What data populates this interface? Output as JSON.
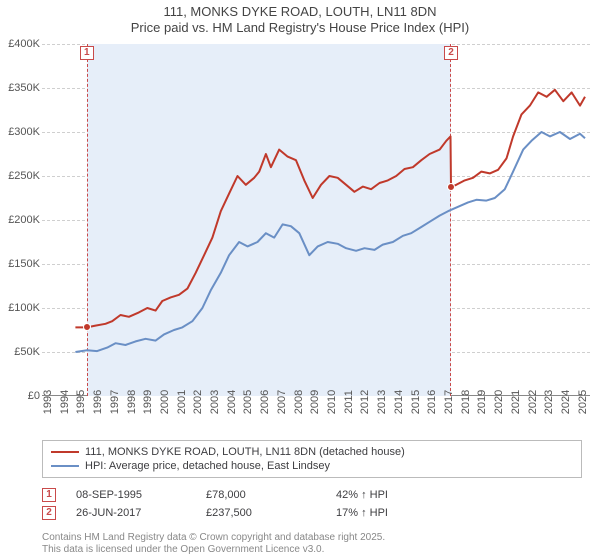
{
  "title_line1": "111, MONKS DYKE ROAD, LOUTH, LN11 8DN",
  "title_line2": "Price paid vs. HM Land Registry's House Price Index (HPI)",
  "chart": {
    "type": "line",
    "background_color": "#ffffff",
    "grid_color": "#cfcfcf",
    "x": {
      "min": 1993,
      "max": 2025.8,
      "tick_step": 1,
      "ticks": [
        1993,
        1994,
        1995,
        1996,
        1997,
        1998,
        1999,
        2000,
        2001,
        2002,
        2003,
        2004,
        2005,
        2006,
        2007,
        2008,
        2009,
        2010,
        2011,
        2012,
        2013,
        2014,
        2015,
        2016,
        2017,
        2018,
        2019,
        2020,
        2021,
        2022,
        2023,
        2024,
        2025
      ],
      "label_fontsize": 11,
      "rotation": -90
    },
    "y": {
      "min": 0,
      "max": 400000,
      "tick_step": 50000,
      "ticks": [
        {
          "v": 0,
          "label": "£0"
        },
        {
          "v": 50000,
          "label": "£50K"
        },
        {
          "v": 100000,
          "label": "£100K"
        },
        {
          "v": 150000,
          "label": "£150K"
        },
        {
          "v": 200000,
          "label": "£200K"
        },
        {
          "v": 250000,
          "label": "£250K"
        },
        {
          "v": 300000,
          "label": "£300K"
        },
        {
          "v": 350000,
          "label": "£350K"
        },
        {
          "v": 400000,
          "label": "£400K"
        }
      ],
      "label_fontsize": 11
    },
    "shade_color": "#e6eef9",
    "series": [
      {
        "key": "property",
        "color": "#c0392b",
        "line_width": 2,
        "data": [
          [
            1995.0,
            78000
          ],
          [
            1995.68,
            78000
          ],
          [
            1996.2,
            80000
          ],
          [
            1996.8,
            82000
          ],
          [
            1997.2,
            85000
          ],
          [
            1997.7,
            92000
          ],
          [
            1998.2,
            90000
          ],
          [
            1998.8,
            95000
          ],
          [
            1999.3,
            100000
          ],
          [
            1999.8,
            97000
          ],
          [
            2000.2,
            108000
          ],
          [
            2000.7,
            112000
          ],
          [
            2001.2,
            115000
          ],
          [
            2001.7,
            122000
          ],
          [
            2002.2,
            140000
          ],
          [
            2002.7,
            160000
          ],
          [
            2003.2,
            180000
          ],
          [
            2003.7,
            210000
          ],
          [
            2004.2,
            230000
          ],
          [
            2004.7,
            250000
          ],
          [
            2005.2,
            240000
          ],
          [
            2005.7,
            248000
          ],
          [
            2006.0,
            255000
          ],
          [
            2006.4,
            275000
          ],
          [
            2006.7,
            260000
          ],
          [
            2007.2,
            280000
          ],
          [
            2007.7,
            272000
          ],
          [
            2008.2,
            268000
          ],
          [
            2008.7,
            245000
          ],
          [
            2009.2,
            225000
          ],
          [
            2009.7,
            240000
          ],
          [
            2010.2,
            250000
          ],
          [
            2010.7,
            248000
          ],
          [
            2011.2,
            240000
          ],
          [
            2011.7,
            232000
          ],
          [
            2012.2,
            238000
          ],
          [
            2012.7,
            235000
          ],
          [
            2013.2,
            242000
          ],
          [
            2013.7,
            245000
          ],
          [
            2014.2,
            250000
          ],
          [
            2014.7,
            258000
          ],
          [
            2015.2,
            260000
          ],
          [
            2015.7,
            268000
          ],
          [
            2016.2,
            275000
          ],
          [
            2016.8,
            280000
          ],
          [
            2017.2,
            290000
          ],
          [
            2017.45,
            295000
          ],
          [
            2017.48,
            237500
          ],
          [
            2017.8,
            240000
          ],
          [
            2018.3,
            245000
          ],
          [
            2018.8,
            248000
          ],
          [
            2019.3,
            255000
          ],
          [
            2019.8,
            253000
          ],
          [
            2020.3,
            257000
          ],
          [
            2020.8,
            270000
          ],
          [
            2021.2,
            295000
          ],
          [
            2021.7,
            320000
          ],
          [
            2022.2,
            330000
          ],
          [
            2022.7,
            345000
          ],
          [
            2023.2,
            340000
          ],
          [
            2023.7,
            348000
          ],
          [
            2024.2,
            335000
          ],
          [
            2024.7,
            345000
          ],
          [
            2025.2,
            330000
          ],
          [
            2025.5,
            340000
          ]
        ]
      },
      {
        "key": "hpi",
        "color": "#6a8fc5",
        "line_width": 2,
        "data": [
          [
            1995.0,
            50000
          ],
          [
            1995.7,
            52000
          ],
          [
            1996.3,
            51000
          ],
          [
            1996.9,
            55000
          ],
          [
            1997.4,
            60000
          ],
          [
            1998.0,
            58000
          ],
          [
            1998.6,
            62000
          ],
          [
            1999.2,
            65000
          ],
          [
            1999.8,
            63000
          ],
          [
            2000.3,
            70000
          ],
          [
            2000.9,
            75000
          ],
          [
            2001.4,
            78000
          ],
          [
            2002.0,
            85000
          ],
          [
            2002.6,
            100000
          ],
          [
            2003.1,
            120000
          ],
          [
            2003.7,
            140000
          ],
          [
            2004.2,
            160000
          ],
          [
            2004.8,
            175000
          ],
          [
            2005.3,
            170000
          ],
          [
            2005.9,
            175000
          ],
          [
            2006.4,
            185000
          ],
          [
            2006.9,
            180000
          ],
          [
            2007.4,
            195000
          ],
          [
            2007.9,
            193000
          ],
          [
            2008.4,
            185000
          ],
          [
            2009.0,
            160000
          ],
          [
            2009.5,
            170000
          ],
          [
            2010.1,
            175000
          ],
          [
            2010.7,
            173000
          ],
          [
            2011.2,
            168000
          ],
          [
            2011.8,
            165000
          ],
          [
            2012.3,
            168000
          ],
          [
            2012.9,
            166000
          ],
          [
            2013.4,
            172000
          ],
          [
            2014.0,
            175000
          ],
          [
            2014.6,
            182000
          ],
          [
            2015.1,
            185000
          ],
          [
            2015.7,
            192000
          ],
          [
            2016.2,
            198000
          ],
          [
            2016.8,
            205000
          ],
          [
            2017.3,
            210000
          ],
          [
            2017.9,
            215000
          ],
          [
            2018.5,
            220000
          ],
          [
            2019.0,
            223000
          ],
          [
            2019.6,
            222000
          ],
          [
            2020.1,
            225000
          ],
          [
            2020.7,
            235000
          ],
          [
            2021.2,
            255000
          ],
          [
            2021.8,
            280000
          ],
          [
            2022.3,
            290000
          ],
          [
            2022.9,
            300000
          ],
          [
            2023.4,
            295000
          ],
          [
            2024.0,
            300000
          ],
          [
            2024.6,
            292000
          ],
          [
            2025.2,
            298000
          ],
          [
            2025.5,
            293000
          ]
        ]
      }
    ],
    "sale_markers": [
      {
        "n": "1",
        "x": 1995.68,
        "y": 78000
      },
      {
        "n": "2",
        "x": 2017.48,
        "y": 237500
      }
    ]
  },
  "legend": {
    "items": [
      {
        "color": "#c0392b",
        "label": "111, MONKS DYKE ROAD, LOUTH, LN11 8DN (detached house)"
      },
      {
        "color": "#6a8fc5",
        "label": "HPI: Average price, detached house, East Lindsey"
      }
    ]
  },
  "sales": [
    {
      "n": "1",
      "date": "08-SEP-1995",
      "price": "£78,000",
      "delta": "42% ↑ HPI"
    },
    {
      "n": "2",
      "date": "26-JUN-2017",
      "price": "£237,500",
      "delta": "17% ↑ HPI"
    }
  ],
  "attribution_line1": "Contains HM Land Registry data © Crown copyright and database right 2025.",
  "attribution_line2": "This data is licensed under the Open Government Licence v3.0."
}
